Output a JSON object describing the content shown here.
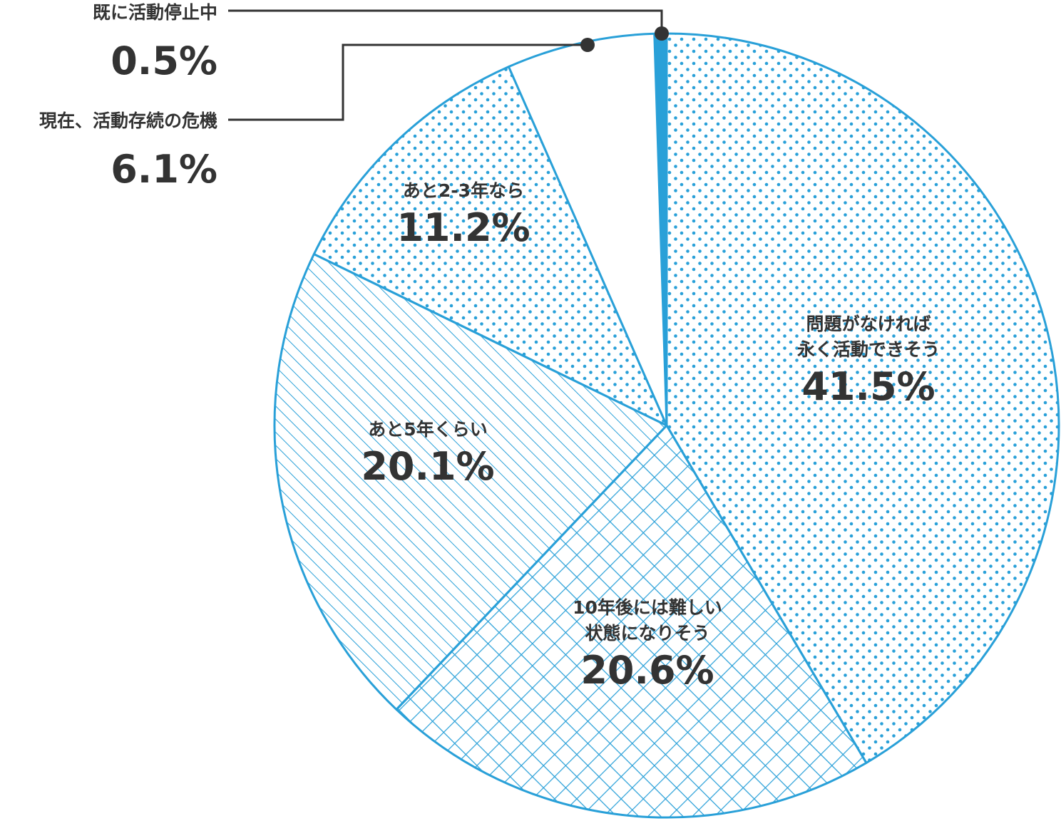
{
  "chart_data": {
    "type": "pie",
    "categories": [
      "既に活動停止中",
      "問題がなければ\n永く活動できそう",
      "10年後には難しい\n状態になりそう",
      "あと5年くらい",
      "あと2-3年なら",
      "現在、活動存続の危機"
    ],
    "values": [
      0.5,
      41.5,
      20.6,
      20.1,
      11.2,
      6.1
    ],
    "value_labels": [
      "0.5%",
      "41.5%",
      "20.6%",
      "20.1%",
      "11.2%",
      "6.1%"
    ],
    "patterns": [
      "solid",
      "dots",
      "crosshatch",
      "diagonal",
      "dots",
      "none"
    ],
    "color": "#29a0d8"
  }
}
